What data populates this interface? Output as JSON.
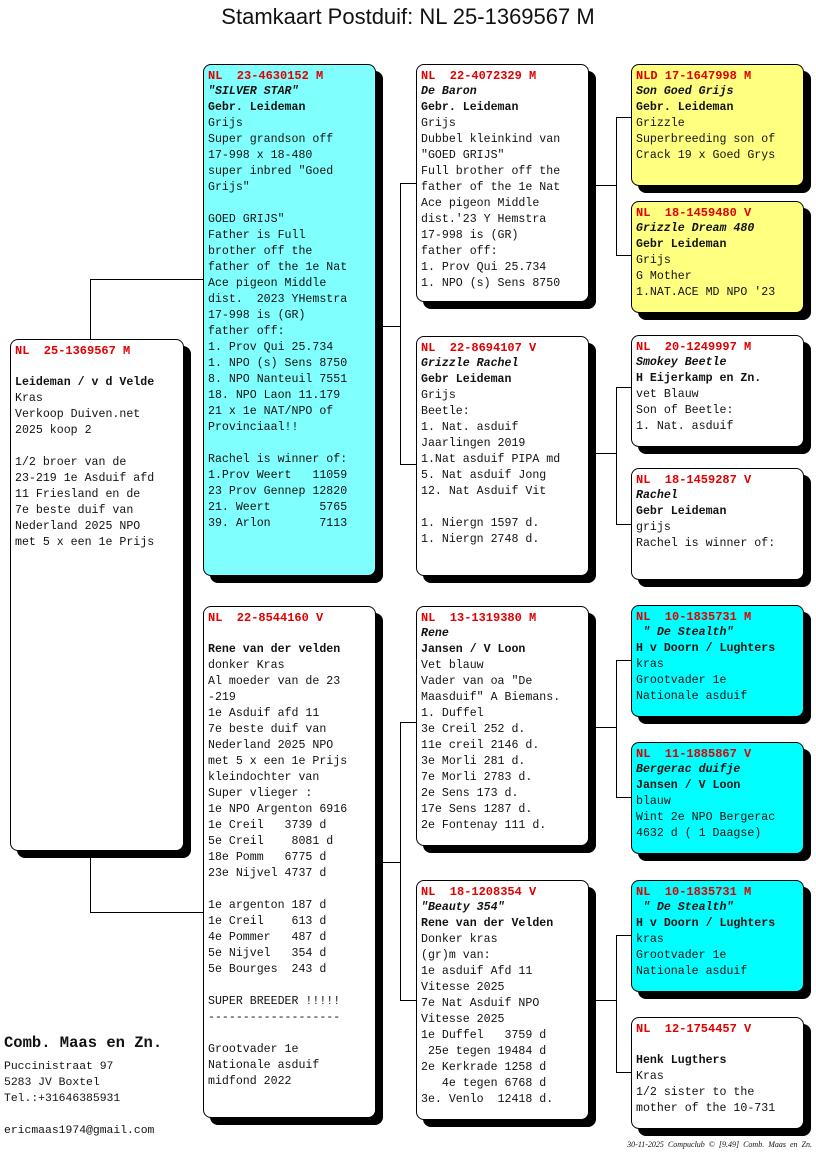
{
  "title": "Stamkaart Postduif: NL  25-1369567 M",
  "colors": {
    "ring": "#e00000",
    "light_cyan": "#80ffff",
    "cyan": "#00ffff",
    "yellow": "#ffff80",
    "white": "#ffffff"
  },
  "pedigree": {
    "subject": {
      "ring": "NL  25-1369567 M",
      "name": "",
      "owner": "Leideman / v d Velde",
      "color": "#ffffff",
      "lines": [
        "Kras",
        "Verkoop Duiven.net",
        "2025 koop 2",
        "",
        "1/2 broer van de",
        "23-219 1e Asduif afd",
        "11 Friesland en de",
        "7e beste duif van",
        "Nederland 2025 NPO",
        "met 5 x een 1e Prijs"
      ]
    },
    "father": {
      "ring": "NL  23-4630152 M",
      "name": "\"SILVER STAR\"",
      "owner": "Gebr. Leideman",
      "color": "#80ffff",
      "lines": [
        "Grijs",
        "Super grandson off",
        "17-998 x 18-480",
        "super inbred \"Goed",
        "Grijs\"",
        "",
        "GOED GRIJS\"",
        "Father is Full",
        "brother off the",
        "father of the 1e Nat",
        "Ace pigeon Middle",
        "dist.  2023 YHemstra",
        "17-998 is (GR)",
        "father off:",
        "1. Prov Qui 25.734",
        "1. NPO (s) Sens 8750",
        "8. NPO Nanteuil 7551",
        "18. NPO Laon 11.179",
        "21 x 1e NAT/NPO of",
        "Provinciaal!!",
        "",
        "Rachel is winner of:",
        "1.Prov Weert   11059",
        "23 Prov Gennep 12820",
        "21. Weert       5765",
        "39. Arlon       7113"
      ]
    },
    "mother": {
      "ring": "NL  22-8544160 V",
      "name": "",
      "owner": "Rene van der velden",
      "color": "#ffffff",
      "lines": [
        "donker Kras",
        "Al moeder van de 23",
        "-219",
        "1e Asduif afd 11",
        "7e beste duif van",
        "Nederland 2025 NPO",
        "met 5 x een 1e Prijs",
        "kleindochter van",
        "Super vlieger :",
        "1e NPO Argenton 6916",
        "1e Creil   3739 d",
        "5e Creil    8081 d",
        "18e Pomm   6775 d",
        "23e Nijvel 4737 d",
        "",
        "1e argenton 187 d",
        "1e Creil    613 d",
        "4e Pommer   487 d",
        "5e Nijvel   354 d",
        "5e Bourges  243 d",
        "",
        "SUPER BREEDER !!!!!",
        "-------------------",
        "",
        "Grootvader 1e",
        "Nationale asduif",
        "midfond 2022"
      ]
    },
    "ff": {
      "ring": "NL  22-4072329 M",
      "name": "De Baron",
      "owner": "Gebr. Leideman",
      "color": "#ffffff",
      "lines": [
        "Grijs",
        "Dubbel kleinkind van",
        "\"GOED GRIJS\"",
        "Full brother off the",
        "father of the 1e Nat",
        "Ace pigeon Middle",
        "dist.'23 Y Hemstra",
        "17-998 is (GR)",
        "father off:",
        "1. Prov Qui 25.734",
        "1. NPO (s) Sens 8750"
      ]
    },
    "fm": {
      "ring": "NL  22-8694107 V",
      "name": "Grizzle Rachel",
      "owner": "Gebr Leideman",
      "color": "#ffffff",
      "lines": [
        "Grijs",
        "Beetle:",
        "1. Nat. asduif",
        "Jaarlingen 2019",
        "1.Nat asduif PIPA md",
        "5. Nat asduif Jong",
        "12. Nat Asduif Vit",
        "",
        "1. Niergn 1597 d.",
        "1. Niergn 2748 d."
      ]
    },
    "mf": {
      "ring": "NL  13-1319380 M",
      "name": "Rene",
      "owner": "Jansen / V Loon",
      "color": "#ffffff",
      "lines": [
        "Vet blauw",
        "Vader van oa \"De",
        "Maasduif\" A Biemans.",
        "1. Duffel",
        "3e Creil 252 d.",
        "11e creil 2146 d.",
        "3e Morli 281 d.",
        "7e Morli 2783 d.",
        "2e Sens 173 d.",
        "17e Sens 1287 d.",
        "2e Fontenay 111 d."
      ]
    },
    "mm": {
      "ring": "NL  18-1208354 V",
      "name": "\"Beauty 354\"",
      "owner": "Rene van der Velden",
      "color": "#ffffff",
      "lines": [
        "Donker kras",
        "(gr)m van:",
        "1e asduif Afd 11",
        "Vitesse 2025",
        "7e Nat Asduif NPO",
        "Vitesse 2025",
        "1e Duffel   3759 d",
        " 25e tegen 19484 d",
        "2e Kerkrade 1258 d",
        "   4e tegen 6768 d",
        "3e. Venlo  12418 d."
      ]
    },
    "fff": {
      "ring": "NLD 17-1647998 M",
      "name": "Son Goed Grijs",
      "owner": "Gebr. Leideman",
      "color": "#ffff80",
      "lines": [
        "Grizzle",
        "Superbreeding son of",
        "Crack 19 x Goed Grys"
      ]
    },
    "ffm": {
      "ring": "NL  18-1459480 V",
      "name": "Grizzle Dream 480",
      "owner": "Gebr Leideman",
      "color": "#ffff80",
      "lines": [
        "Grijs",
        "G Mother",
        "1.NAT.ACE MD NPO '23"
      ]
    },
    "fmf": {
      "ring": "NL  20-1249997 M",
      "name": "Smokey Beetle",
      "owner": "H Eijerkamp en Zn.",
      "color": "#ffffff",
      "lines": [
        "vet Blauw",
        "Son of Beetle:",
        "1. Nat. asduif"
      ]
    },
    "fmm": {
      "ring": "NL  18-1459287 V",
      "name": "Rachel",
      "owner": "Gebr Leideman",
      "color": "#ffffff",
      "lines": [
        "grijs",
        "Rachel is winner of:"
      ]
    },
    "mff": {
      "ring": "NL  10-1835731 M",
      "name": " \" De Stealth\"",
      "owner": "H v Doorn / Lughters",
      "color": "#00ffff",
      "lines": [
        "kras",
        "Grootvader 1e",
        "Nationale asduif"
      ]
    },
    "mfm": {
      "ring": "NL  11-1885867 V",
      "name": "Bergerac duifje",
      "owner": "Jansen / V Loon",
      "color": "#00ffff",
      "lines": [
        "blauw",
        "Wint 2e NPO Bergerac",
        "4632 d ( 1 Daagse)"
      ]
    },
    "mmf": {
      "ring": "NL  10-1835731 M",
      "name": " \" De Stealth\"",
      "owner": "H v Doorn / Lughters",
      "color": "#00ffff",
      "lines": [
        "kras",
        "Grootvader 1e",
        "Nationale asduif"
      ]
    },
    "mmm": {
      "ring": "NL  12-1754457 V",
      "name": "",
      "owner": "Henk Lugthers",
      "color": "#ffffff",
      "lines": [
        "Kras",
        "1/2 sister to the",
        "mother of the 10-731"
      ]
    }
  },
  "breeder": {
    "name": "Comb. Maas en Zn.",
    "street": "Puccinistraat 97",
    "city": "5283 JV  Boxtel",
    "phone": "Tel.:+31646385931",
    "email": "ericmaas1974@gmail.com"
  },
  "footer": {
    "credit": "30-11-2025   Compuclub © [9.49]  Comb. Maas en Zn."
  }
}
